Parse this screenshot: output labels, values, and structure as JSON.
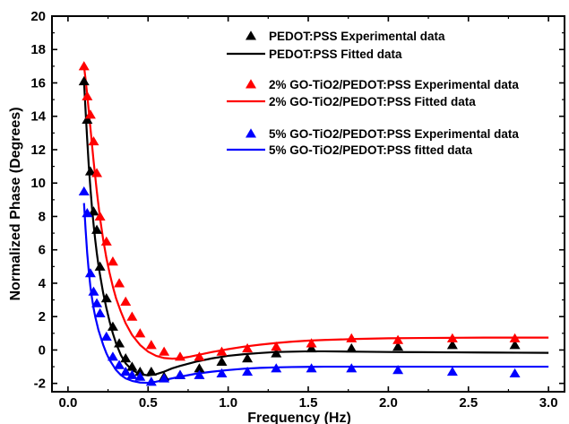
{
  "chart_data": {
    "type": "scatter",
    "title": "",
    "xlabel": "Frequency (Hz)",
    "ylabel": "Normalized Phase (Degrees)",
    "xlim": [
      -0.1,
      3.1
    ],
    "ylim": [
      -2.5,
      20
    ],
    "x_ticks": [
      0.0,
      0.5,
      1.0,
      1.5,
      2.0,
      2.5,
      3.0
    ],
    "x_tick_labels": [
      "0.0",
      "0.5",
      "1.0",
      "1.5",
      "2.0",
      "2.5",
      "3.0"
    ],
    "y_ticks": [
      -2,
      0,
      2,
      4,
      6,
      8,
      10,
      12,
      14,
      16,
      18,
      20
    ],
    "y_tick_labels": [
      "-2",
      "0",
      "2",
      "4",
      "6",
      "8",
      "10",
      "12",
      "14",
      "16",
      "18",
      "20"
    ],
    "grid": false,
    "legend_position": "top-right",
    "series": [
      {
        "name": "PEDOT:PSS Experimental data",
        "kind": "markers",
        "color": "#000000",
        "x": [
          0.1,
          0.12,
          0.14,
          0.16,
          0.18,
          0.2,
          0.24,
          0.28,
          0.32,
          0.36,
          0.4,
          0.45,
          0.52,
          0.6,
          0.7,
          0.82,
          0.96,
          1.12,
          1.3,
          1.52,
          1.77,
          2.06,
          2.4,
          2.79
        ],
        "y": [
          16.1,
          13.8,
          10.7,
          8.3,
          7.2,
          5.0,
          3.1,
          1.4,
          0.4,
          -0.5,
          -1.0,
          -1.3,
          -1.3,
          -1.6,
          -1.5,
          -1.1,
          -0.7,
          -0.5,
          -0.2,
          0.1,
          0.1,
          0.2,
          0.3,
          0.3
        ]
      },
      {
        "name": "PEDOT:PSS Fitted data",
        "kind": "line",
        "color": "#000000",
        "x": [
          0.1,
          0.11,
          0.12,
          0.13,
          0.14,
          0.15,
          0.16,
          0.17,
          0.18,
          0.19,
          0.2,
          0.22,
          0.24,
          0.26,
          0.28,
          0.3,
          0.33,
          0.36,
          0.4,
          0.45,
          0.5,
          0.55,
          0.6,
          0.65,
          0.7,
          0.8,
          0.9,
          1.0,
          1.1,
          1.2,
          1.3,
          1.4,
          1.5,
          1.6,
          1.8,
          2.0,
          2.2,
          2.4,
          2.6,
          2.8,
          3.0
        ],
        "y": [
          16.1,
          14.3,
          12.6,
          11.0,
          9.7,
          8.5,
          7.5,
          6.6,
          5.8,
          5.1,
          4.5,
          3.4,
          2.5,
          1.7,
          1.0,
          0.4,
          -0.3,
          -0.8,
          -1.2,
          -1.45,
          -1.52,
          -1.45,
          -1.3,
          -1.1,
          -0.95,
          -0.7,
          -0.5,
          -0.35,
          -0.25,
          -0.18,
          -0.12,
          -0.1,
          -0.08,
          -0.08,
          -0.1,
          -0.12,
          -0.13,
          -0.14,
          -0.15,
          -0.16,
          -0.17
        ]
      },
      {
        "name": "2% GO-TiO2/PEDOT:PSS Experimental data",
        "kind": "markers",
        "color": "#ff0000",
        "x": [
          0.1,
          0.12,
          0.14,
          0.16,
          0.18,
          0.2,
          0.24,
          0.28,
          0.32,
          0.36,
          0.4,
          0.45,
          0.52,
          0.6,
          0.7,
          0.82,
          0.96,
          1.12,
          1.3,
          1.52,
          1.77,
          2.06,
          2.4,
          2.79
        ],
        "y": [
          17.0,
          15.2,
          14.1,
          12.5,
          10.6,
          8.0,
          6.5,
          5.3,
          4.0,
          2.9,
          2.0,
          1.0,
          0.3,
          -0.1,
          -0.4,
          -0.4,
          -0.1,
          0.1,
          0.2,
          0.4,
          0.7,
          0.6,
          0.7,
          0.7
        ]
      },
      {
        "name": "2% GO-TiO2/PEDOT:PSS Fitted data",
        "kind": "line",
        "color": "#ff0000",
        "x": [
          0.1,
          0.11,
          0.12,
          0.13,
          0.14,
          0.15,
          0.16,
          0.17,
          0.18,
          0.19,
          0.2,
          0.22,
          0.24,
          0.26,
          0.28,
          0.3,
          0.33,
          0.36,
          0.4,
          0.45,
          0.5,
          0.55,
          0.6,
          0.65,
          0.7,
          0.75,
          0.8,
          0.9,
          1.0,
          1.1,
          1.2,
          1.3,
          1.4,
          1.5,
          1.6,
          1.8,
          2.0,
          2.2,
          2.4,
          2.6,
          2.8,
          3.0
        ],
        "y": [
          17.0,
          16.2,
          15.3,
          14.3,
          13.3,
          12.3,
          11.3,
          10.4,
          9.5,
          8.7,
          7.9,
          6.6,
          5.5,
          4.6,
          3.8,
          3.1,
          2.3,
          1.6,
          0.9,
          0.3,
          -0.1,
          -0.35,
          -0.48,
          -0.52,
          -0.5,
          -0.42,
          -0.32,
          -0.12,
          0.05,
          0.2,
          0.32,
          0.42,
          0.5,
          0.56,
          0.6,
          0.66,
          0.7,
          0.72,
          0.73,
          0.74,
          0.74,
          0.74
        ]
      },
      {
        "name": "5% GO-TiO2/PEDOT:PSS Experimental data",
        "kind": "markers",
        "color": "#0000ff",
        "x": [
          0.1,
          0.12,
          0.14,
          0.16,
          0.18,
          0.2,
          0.24,
          0.28,
          0.32,
          0.36,
          0.4,
          0.45,
          0.52,
          0.6,
          0.7,
          0.82,
          0.96,
          1.12,
          1.3,
          1.52,
          1.77,
          2.06,
          2.4,
          2.79
        ],
        "y": [
          9.5,
          8.2,
          4.6,
          3.5,
          2.8,
          2.2,
          0.8,
          -0.4,
          -0.9,
          -1.3,
          -1.5,
          -1.6,
          -1.9,
          -1.7,
          -1.5,
          -1.5,
          -1.4,
          -1.3,
          -1.1,
          -1.1,
          -1.1,
          -1.2,
          -1.3,
          -1.4
        ]
      },
      {
        "name": "5% GO-TiO2/PEDOT:PSS fitted data",
        "kind": "line",
        "color": "#0000ff",
        "x": [
          0.1,
          0.11,
          0.12,
          0.13,
          0.14,
          0.15,
          0.16,
          0.17,
          0.18,
          0.19,
          0.2,
          0.22,
          0.24,
          0.26,
          0.28,
          0.3,
          0.33,
          0.36,
          0.4,
          0.45,
          0.5,
          0.55,
          0.6,
          0.7,
          0.8,
          0.9,
          1.0,
          1.1,
          1.2,
          1.3,
          1.4,
          1.5,
          1.6,
          1.8,
          2.0,
          2.2,
          2.4,
          2.6,
          2.8,
          3.0
        ],
        "y": [
          8.8,
          7.2,
          5.8,
          4.7,
          3.8,
          3.1,
          2.5,
          2.0,
          1.6,
          1.2,
          0.9,
          0.3,
          -0.2,
          -0.6,
          -0.9,
          -1.2,
          -1.5,
          -1.7,
          -1.85,
          -1.95,
          -1.97,
          -1.9,
          -1.8,
          -1.6,
          -1.42,
          -1.3,
          -1.2,
          -1.12,
          -1.07,
          -1.04,
          -1.02,
          -1.01,
          -1.0,
          -1.0,
          -1.0,
          -1.0,
          -1.0,
          -1.0,
          -1.0,
          -1.0
        ]
      }
    ]
  }
}
